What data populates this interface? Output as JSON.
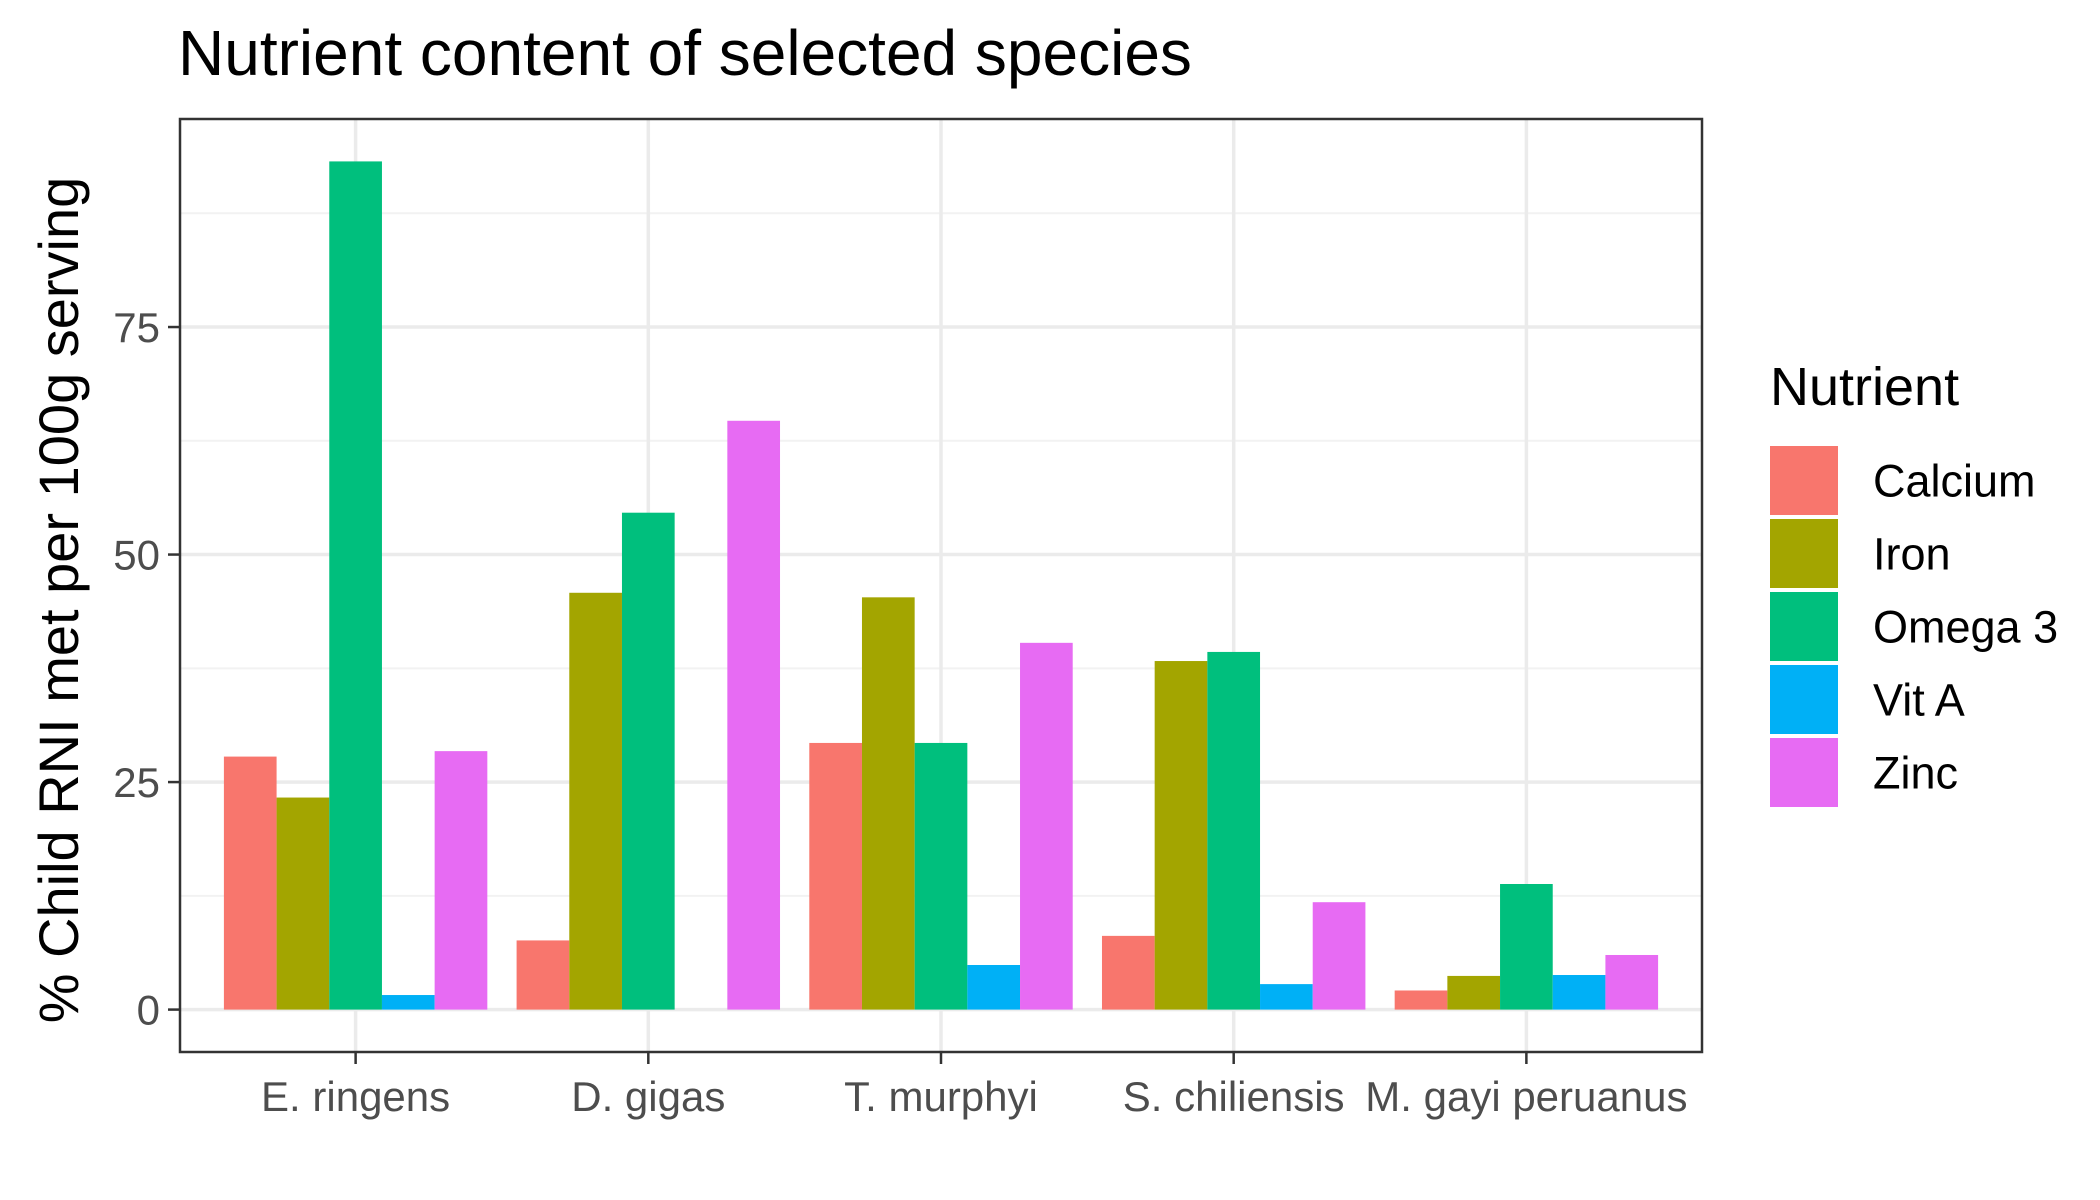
{
  "chart_data": {
    "type": "bar",
    "title": "Nutrient content of selected species",
    "xlabel": "",
    "ylabel": "% Child RNI met per 100g serving",
    "categories": [
      "E. ringens",
      "D. gigas",
      "T. murphyi",
      "S. chiliensis",
      "M. gayi peruanus"
    ],
    "series": [
      {
        "name": "Calcium",
        "color": "#F8766D",
        "values": [
          27.8,
          7.6,
          29.3,
          8.1,
          2.1
        ]
      },
      {
        "name": "Iron",
        "color": "#A3A500",
        "values": [
          23.3,
          45.8,
          45.3,
          38.3,
          3.7
        ]
      },
      {
        "name": "Omega 3",
        "color": "#00BF7D",
        "values": [
          93.2,
          54.6,
          29.3,
          39.3,
          13.8
        ]
      },
      {
        "name": "Vit A",
        "color": "#00B0F6",
        "values": [
          1.6,
          0,
          4.9,
          2.8,
          3.8
        ]
      },
      {
        "name": "Zinc",
        "color": "#E76BF3",
        "values": [
          28.4,
          64.7,
          40.3,
          11.8,
          6.0
        ]
      }
    ],
    "ylim": [
      -4.66,
      97.86
    ],
    "yticks": [
      0,
      25,
      50,
      75
    ],
    "ytick_labels": [
      "0",
      "25",
      "50",
      "75"
    ],
    "grid": true,
    "legend": {
      "title": "Nutrient",
      "position": "right"
    }
  }
}
